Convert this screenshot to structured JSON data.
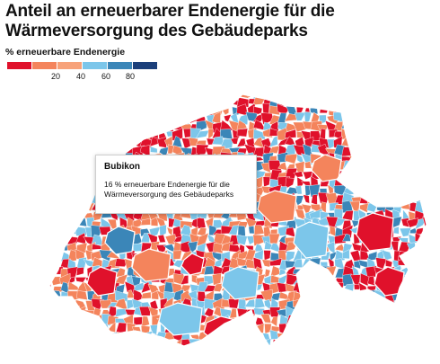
{
  "title": "Anteil an erneuerbarer Endenergie für die Wärmeversorgung des Gebäudeparks",
  "legend": {
    "title": "% erneuerbare Endenergie",
    "colors": [
      "#e0112b",
      "#f4845c",
      "#f7a27a",
      "#7cc6ea",
      "#3b86b8",
      "#1b3f7a"
    ],
    "ticks": [
      "20",
      "40",
      "60",
      "80"
    ]
  },
  "tooltip": {
    "name": "Bubikon",
    "text": "16 % erneuerbare Endenergie für die Wärmeversorgung des Gebäudeparks"
  }
}
